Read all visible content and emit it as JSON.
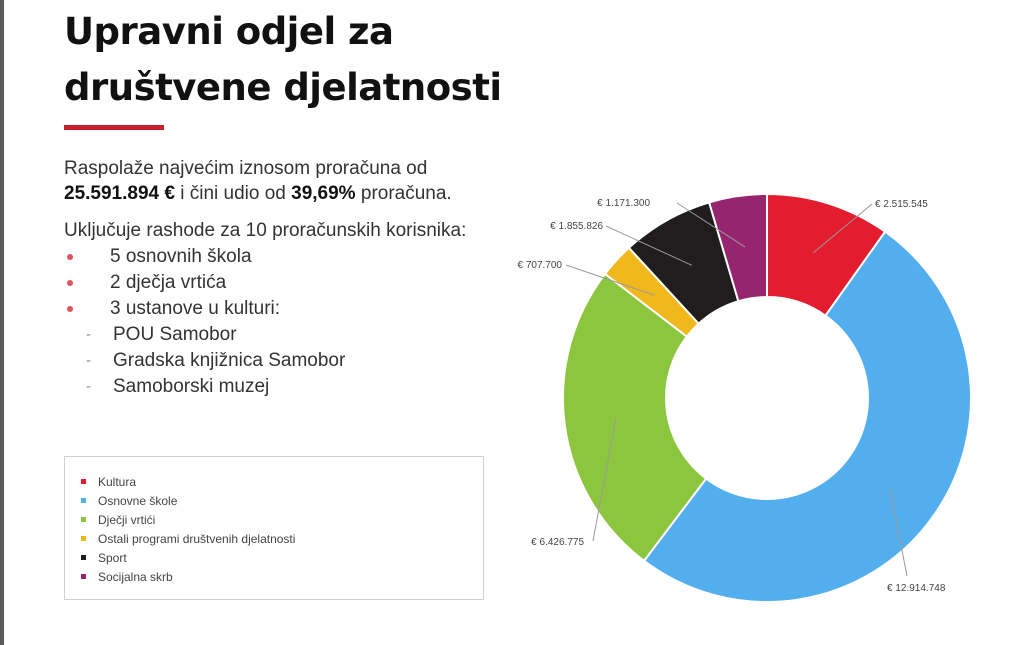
{
  "title_lines": [
    "Upravni odjel za",
    "društvene djelatnosti"
  ],
  "intro": {
    "line1": "Raspolaže najvećim iznosom proračuna od",
    "amount": "25.591.894 €",
    "mid": " i čini udio od ",
    "share": "39,69%",
    "end": " proračuna."
  },
  "includes": {
    "heading": "Uključuje rashode za 10 proračunskih korisnika:",
    "items": [
      "5 osnovnih škola",
      "2 dječja vrtića",
      "3 ustanove u kulturi:"
    ],
    "subitems": [
      "POU Samobor",
      "Gradska knjižnica Samobor",
      "Samoborski muzej"
    ]
  },
  "colors": {
    "accent": "#c8202f",
    "bullet": "#e0535f"
  },
  "chart_data": {
    "type": "pie",
    "donut": true,
    "legend_position": "left-bottom",
    "categories": [
      "Kultura",
      "Osnovne škole",
      "Dječji vrtići",
      "Ostali programi društvenih djelatnosti",
      "Sport",
      "Socijalna skrb"
    ],
    "values": [
      2515545,
      12914748,
      6426775,
      707700,
      1855826,
      1171300
    ],
    "labels": [
      "€ 2.515.545",
      "€ 12.914.748",
      "€ 6.426.775",
      "€ 707.700",
      "€ 1.855.826",
      "€ 1.171.300"
    ],
    "colors": [
      "#e41d2e",
      "#52aeed",
      "#8cc63f",
      "#f1b81e",
      "#1f1d1d",
      "#96246e"
    ]
  }
}
